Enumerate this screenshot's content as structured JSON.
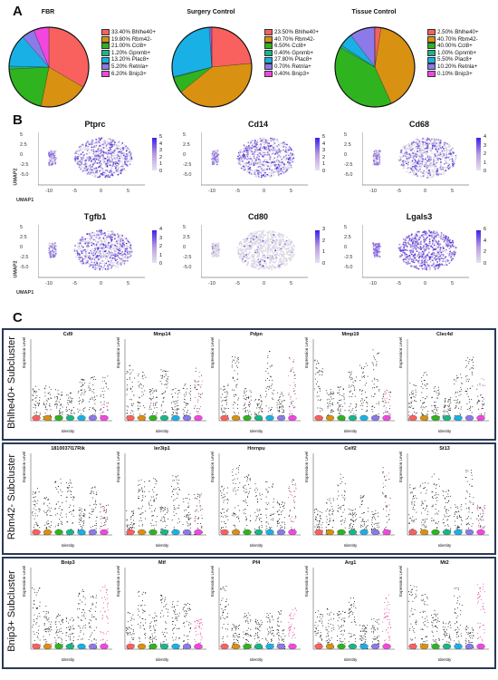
{
  "panels": {
    "a": "A",
    "b": "B",
    "c": "C"
  },
  "pies": [
    {
      "title": "FBR",
      "slices": [
        33.4,
        19.8,
        21.0,
        1.2,
        13.2,
        5.2,
        6.2
      ],
      "labels": [
        "33.40% Bhlhe40+",
        "19.80% Rbm42-",
        "21.00% Ccl8+",
        "1.20% Gpnmb+",
        "13.20% Plac8+",
        "5.20% Retnla+",
        "6.20% Bnip3+"
      ]
    },
    {
      "title": "Surgery Control",
      "slices": [
        23.5,
        40.7,
        6.5,
        0.4,
        27.8,
        0.7,
        0.4
      ],
      "labels": [
        "23.50% Bhlhe40+",
        "40.70% Rbm42-",
        "6.50% Ccl8+",
        "0.40% Gpnmb+",
        "27.80% Plac8+",
        "0.70% Retnla+",
        "0.40% Bnip3+"
      ]
    },
    {
      "title": "Tissue Control",
      "slices": [
        2.5,
        40.7,
        40.0,
        1.0,
        5.5,
        10.2,
        0.1
      ],
      "labels": [
        "2.50% Bhlhe40+",
        "40.70% Rbm42-",
        "40.00% Ccl8+",
        "1.00% Gpnmb+",
        "5.50% Plac8+",
        "10.20% Retnla+",
        "0.10% Bnip3+"
      ]
    }
  ],
  "pie_colors": [
    "#f8615e",
    "#d89111",
    "#2fb31f",
    "#19b686",
    "#19b0e6",
    "#8b7ae8",
    "#f146e0"
  ],
  "umap": {
    "axis_x": "UMAP1",
    "axis_y": "UMAP2",
    "x_ticks": [
      "-10",
      "-5",
      "0",
      "5"
    ],
    "plots": [
      {
        "gene": "Ptprc",
        "y_ticks": [
          "5",
          "2.5",
          "0",
          "-2.5",
          "-5.0"
        ],
        "cb": [
          "5",
          "4",
          "3",
          "2",
          "1",
          "0"
        ]
      },
      {
        "gene": "Cd14",
        "y_ticks": [
          "5",
          "2.5",
          "0",
          "-2.5",
          "-5.0"
        ],
        "cb": [
          "5",
          "4",
          "3",
          "2",
          "1",
          "0"
        ]
      },
      {
        "gene": "Cd68",
        "y_ticks": [
          "5",
          "2.5",
          "0",
          "-2.5",
          "-5.0"
        ],
        "cb": [
          "4",
          "3",
          "2",
          "1",
          "0"
        ]
      },
      {
        "gene": "Tgfb1",
        "y_ticks": [
          "5",
          "2.5",
          "0",
          "-2.5",
          "-5.0"
        ],
        "cb": [
          "4",
          "3",
          "2",
          "1",
          "0"
        ]
      },
      {
        "gene": "Cd80",
        "y_ticks": [
          "5",
          "2.5",
          "0",
          "-2.5",
          "-5.0"
        ],
        "cb": [
          "3",
          "2",
          "1",
          "0"
        ]
      },
      {
        "gene": "Lgals3",
        "y_ticks": [
          "5",
          "2.5",
          "0",
          "-2.5",
          "-5.0"
        ],
        "cb": [
          "6",
          "4",
          "2",
          "0"
        ]
      }
    ]
  },
  "vln": {
    "y_label": "Expression Level",
    "x_label": "Identity",
    "groups": [
      {
        "label": "Bhlhe40+ Subcluster",
        "genes": [
          "Cd9",
          "Mmp14",
          "Pdpn",
          "Mmp19",
          "Clec4d"
        ]
      },
      {
        "label": "Rbm42- Subcluster",
        "genes": [
          "1810037I17Rik",
          "Ier3ip1",
          "Hnrnpu",
          "Celf2",
          "St13"
        ]
      },
      {
        "label": "Bnip3+ Subcluster",
        "genes": [
          "Bnip3",
          "Mif",
          "Pf4",
          "Arg1",
          "Mt2"
        ]
      }
    ],
    "violin_colors": [
      "#f8615e",
      "#d89111",
      "#2fb31f",
      "#19b686",
      "#19b0e6",
      "#8b7ae8",
      "#f146e0"
    ]
  }
}
